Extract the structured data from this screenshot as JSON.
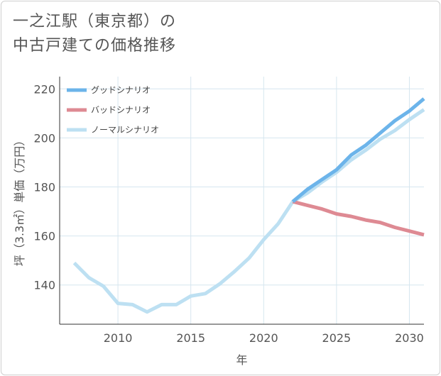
{
  "title": {
    "line1": "一之江駅（東京都）の",
    "line2": "中古戸建ての価格推移"
  },
  "chart_data": {
    "type": "line",
    "title": "一之江駅（東京都）の中古戸建ての価格推移",
    "xlabel": "年",
    "ylabel": "坪（3.3㎡）単価（万円）",
    "xlim": [
      2006,
      2031
    ],
    "ylim": [
      124,
      225
    ],
    "xticks": [
      2010,
      2015,
      2020,
      2025,
      2030
    ],
    "yticks": [
      140,
      160,
      180,
      200,
      220
    ],
    "legend_position": "top-left",
    "series": [
      {
        "name": "グッドシナリオ",
        "color": "#6cb4ea",
        "x": [
          2022,
          2023,
          2024,
          2025,
          2026,
          2027,
          2028,
          2029,
          2030,
          2031
        ],
        "values": [
          174,
          179,
          183,
          187,
          193,
          197,
          202,
          207,
          211,
          216
        ]
      },
      {
        "name": "バッドシナリオ",
        "color": "#de8a93",
        "x": [
          2022,
          2023,
          2024,
          2025,
          2026,
          2027,
          2028,
          2029,
          2030,
          2031
        ],
        "values": [
          174,
          172.5,
          171,
          169,
          168,
          166.5,
          165.5,
          163.5,
          162,
          160.5
        ]
      },
      {
        "name": "ノーマルシナリオ",
        "color": "#bde0f2",
        "x": [
          2007,
          2008,
          2009,
          2010,
          2011,
          2012,
          2013,
          2014,
          2015,
          2016,
          2017,
          2018,
          2019,
          2020,
          2021,
          2022,
          2023,
          2024,
          2025,
          2026,
          2027,
          2028,
          2029,
          2030,
          2031
        ],
        "values": [
          149,
          143,
          139.5,
          132.5,
          132,
          129,
          132,
          132,
          135.5,
          136.5,
          140.5,
          145.5,
          151,
          158.5,
          165,
          174,
          177.5,
          182,
          186,
          191,
          195,
          199.5,
          203,
          207.5,
          211.5
        ]
      }
    ]
  }
}
